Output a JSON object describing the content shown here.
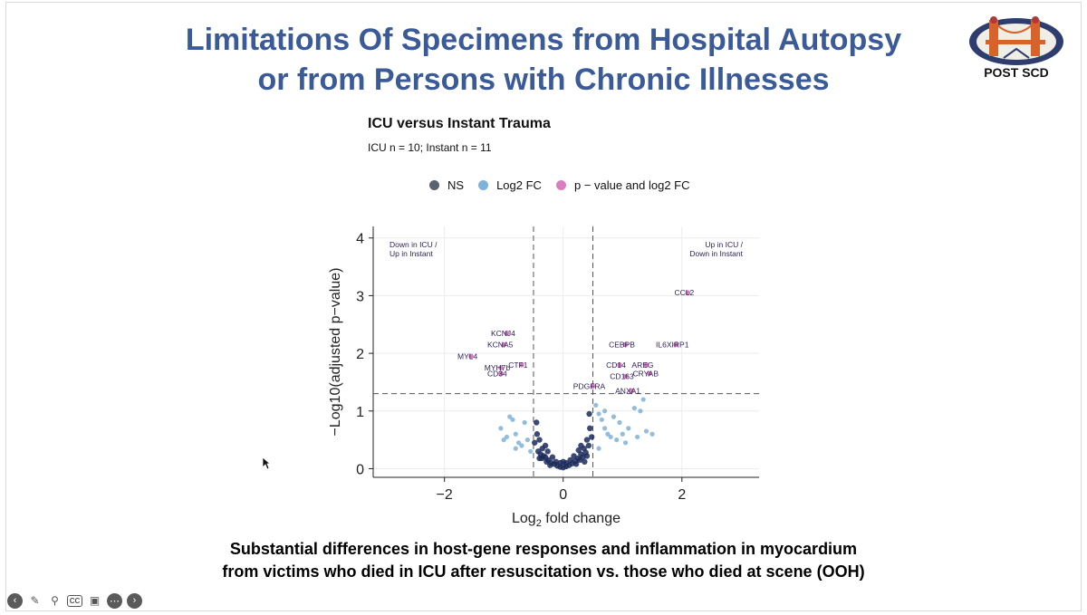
{
  "slide": {
    "title_line1": "Limitations Of Specimens from Hospital Autopsy",
    "title_line2": "or from Persons with Chronic Illnesses",
    "logo_text": "POST SCD",
    "caption_line1": "Substantial differences in host-gene responses and inflammation in myocardium",
    "caption_line2": "from victims who died in ICU after resuscitation vs. those who died at scene (OOH)"
  },
  "toolbar": {
    "icons": [
      "back-icon",
      "pen-icon",
      "zoom-icon",
      "cc-icon",
      "video-icon",
      "more-icon",
      "forward-icon"
    ],
    "cc_label": "CC"
  },
  "colors": {
    "title": "#3b5a98",
    "ns": "#5a6270",
    "log2fc": "#7fb2d9",
    "both": "#d77fbf",
    "dark_points": "#1b2a5a",
    "label": "#2d1f55"
  },
  "chart_data": {
    "type": "scatter",
    "title": "ICU versus Instant Trauma",
    "subtitle": "ICU n = 10; Instant n = 11",
    "xlabel_main": "Log",
    "xlabel_sub": "2",
    "xlabel_rest": " fold change",
    "ylabel": "−Log10(adjusted p−value)",
    "xlim": [
      -3.2,
      3.3
    ],
    "ylim": [
      -0.15,
      4.2
    ],
    "x_ticks": [
      -2,
      0,
      2
    ],
    "x_tick_labels": [
      "−2",
      "0",
      "2"
    ],
    "y_ticks": [
      0,
      1,
      2,
      3,
      4
    ],
    "y_tick_labels": [
      "0",
      "1",
      "2",
      "3",
      "4"
    ],
    "thresholds": {
      "fc": [
        -0.5,
        0.5
      ],
      "p": 1.3
    },
    "legend": [
      {
        "name": "NS",
        "color": "#5a6270"
      },
      {
        "name": "Log2 FC",
        "color": "#7fb2d9"
      },
      {
        "name": "p − value and log2 FC",
        "color": "#d77fbf"
      }
    ],
    "corner_labels": {
      "left_line1": "Down in ICU /",
      "left_line2": "Up in Instant",
      "right_line1": "Up in ICU /",
      "right_line2": "Down in Instant"
    },
    "significant": [
      {
        "gene": "CCL2",
        "x": 2.1,
        "y": 3.05
      },
      {
        "gene": "KCNJ4",
        "x": -0.95,
        "y": 2.35
      },
      {
        "gene": "KCNA5",
        "x": -1.0,
        "y": 2.15
      },
      {
        "gene": "MYL4",
        "x": -1.55,
        "y": 1.95
      },
      {
        "gene": "MYH7b",
        "x": -1.05,
        "y": 1.75
      },
      {
        "gene": "CD34",
        "x": -1.05,
        "y": 1.65
      },
      {
        "gene": "CTF1",
        "x": -0.7,
        "y": 1.8
      },
      {
        "gene": "CEBPB",
        "x": 1.05,
        "y": 2.15
      },
      {
        "gene": "IL6XIRP1",
        "x": 1.9,
        "y": 2.15
      },
      {
        "gene": "CD14",
        "x": 0.95,
        "y": 1.8
      },
      {
        "gene": "AREG",
        "x": 1.4,
        "y": 1.8
      },
      {
        "gene": "CD163",
        "x": 1.05,
        "y": 1.6
      },
      {
        "gene": "CRYAB",
        "x": 1.45,
        "y": 1.65
      },
      {
        "gene": "PDGFRA",
        "x": 0.5,
        "y": 1.43
      },
      {
        "gene": "ANXA1",
        "x": 1.15,
        "y": 1.35
      }
    ],
    "fc_only": [
      [
        -1.05,
        0.7
      ],
      [
        -0.95,
        0.55
      ],
      [
        -0.9,
        0.9
      ],
      [
        -0.85,
        0.85
      ],
      [
        -0.8,
        0.6
      ],
      [
        -0.75,
        0.45
      ],
      [
        -0.7,
        0.4
      ],
      [
        -0.65,
        0.8
      ],
      [
        -0.6,
        0.5
      ],
      [
        -0.55,
        0.3
      ],
      [
        -1.0,
        0.5
      ],
      [
        -0.8,
        0.35
      ],
      [
        0.55,
        1.1
      ],
      [
        0.6,
        0.95
      ],
      [
        0.65,
        0.85
      ],
      [
        0.7,
        0.7
      ],
      [
        0.75,
        0.6
      ],
      [
        0.8,
        0.55
      ],
      [
        0.85,
        0.9
      ],
      [
        0.9,
        0.5
      ],
      [
        0.95,
        0.8
      ],
      [
        1.0,
        0.6
      ],
      [
        1.05,
        0.45
      ],
      [
        1.1,
        0.7
      ],
      [
        1.2,
        1.05
      ],
      [
        1.3,
        1.0
      ],
      [
        1.35,
        1.2
      ],
      [
        1.4,
        0.65
      ],
      [
        1.5,
        0.6
      ],
      [
        0.7,
        1.0
      ],
      [
        0.6,
        0.35
      ],
      [
        1.25,
        0.55
      ]
    ],
    "ns": [
      [
        -0.45,
        0.8
      ],
      [
        -0.4,
        0.5
      ],
      [
        -0.35,
        0.35
      ],
      [
        -0.3,
        0.2
      ],
      [
        -0.25,
        0.15
      ],
      [
        -0.2,
        0.1
      ],
      [
        -0.15,
        0.08
      ],
      [
        -0.1,
        0.05
      ],
      [
        -0.05,
        0.03
      ],
      [
        0.0,
        0.02
      ],
      [
        0.05,
        0.04
      ],
      [
        0.1,
        0.06
      ],
      [
        0.15,
        0.09
      ],
      [
        0.2,
        0.13
      ],
      [
        0.25,
        0.18
      ],
      [
        0.3,
        0.25
      ],
      [
        0.35,
        0.35
      ],
      [
        0.4,
        0.5
      ],
      [
        0.45,
        0.7
      ],
      [
        -0.42,
        0.3
      ],
      [
        -0.38,
        0.25
      ],
      [
        -0.33,
        0.22
      ],
      [
        -0.28,
        0.12
      ],
      [
        -0.22,
        0.06
      ],
      [
        0.22,
        0.08
      ],
      [
        0.28,
        0.15
      ],
      [
        0.33,
        0.2
      ],
      [
        0.38,
        0.28
      ],
      [
        0.43,
        0.4
      ],
      [
        -0.48,
        0.45
      ],
      [
        0.48,
        0.55
      ],
      [
        -0.3,
        0.4
      ],
      [
        0.3,
        0.4
      ],
      [
        -0.18,
        0.2
      ],
      [
        0.18,
        0.22
      ],
      [
        -0.12,
        0.12
      ],
      [
        0.12,
        0.15
      ],
      [
        -0.05,
        0.1
      ],
      [
        0.05,
        0.1
      ],
      [
        -0.44,
        0.6
      ],
      [
        0.44,
        0.95
      ],
      [
        -0.36,
        0.18
      ],
      [
        0.36,
        0.12
      ],
      [
        0.0,
        0.12
      ],
      [
        -0.26,
        0.3
      ],
      [
        0.26,
        0.32
      ],
      [
        0.4,
        0.22
      ],
      [
        -0.4,
        0.18
      ]
    ]
  }
}
